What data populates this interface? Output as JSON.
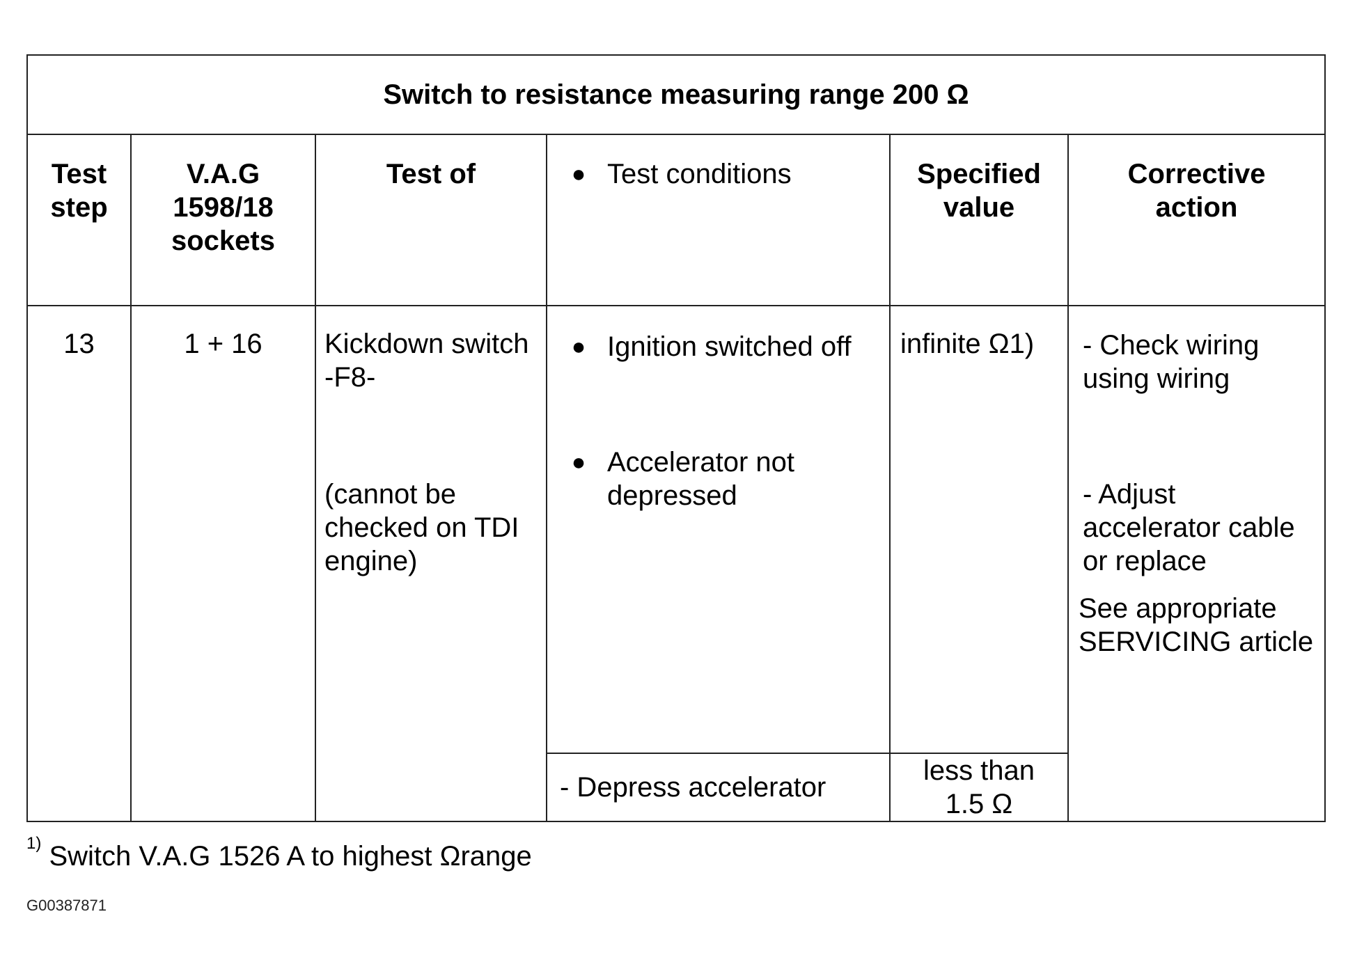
{
  "table": {
    "title": "Switch to resistance measuring range 200 Ω",
    "headers": {
      "test_step": "Test step",
      "sockets": "V.A.G 1598/18 sockets",
      "test_of": "Test of",
      "test_conditions": "Test conditions",
      "specified_value": "Specified value",
      "corrective_action": "Corrective action"
    },
    "row": {
      "test_step": "13",
      "sockets": "1 + 16",
      "test_of_component": "Kickdown switch -F8-",
      "test_of_note": "(cannot be checked on TDI engine)",
      "conditions": [
        "Ignition switched off",
        "Accelerator not depressed"
      ],
      "specified_value_1": "infinite Ω1)",
      "actions": [
        "- Check wiring using wiring",
        "- Adjust accelerator cable or replace",
        "See appropriate SERVICING article"
      ],
      "condition_2": "- Depress accelerator",
      "specified_value_2": "less than 1.5 Ω"
    }
  },
  "footnote": {
    "marker": "1)",
    "text": "Switch V.A.G 1526 A to highest Ωrange"
  },
  "figure_id": "G00387871"
}
